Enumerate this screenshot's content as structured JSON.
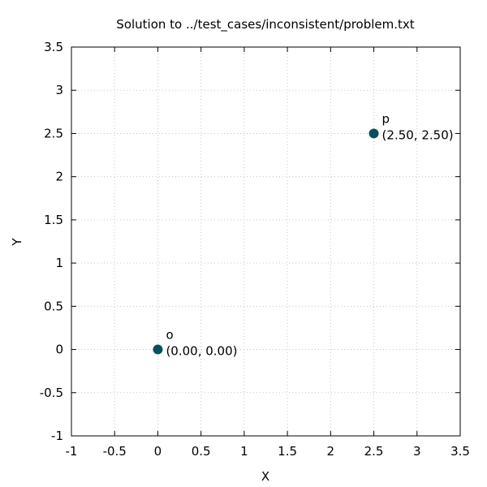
{
  "chart_data": {
    "type": "scatter",
    "title": "Solution to ../test_cases/inconsistent/problem.txt",
    "xlabel": "X",
    "ylabel": "Y",
    "xlim": [
      -1,
      3.5
    ],
    "ylim": [
      -1,
      3.5
    ],
    "xticks": [
      -1,
      -0.5,
      0,
      0.5,
      1,
      1.5,
      2,
      2.5,
      3,
      3.5
    ],
    "yticks": [
      -1,
      -0.5,
      0,
      0.5,
      1,
      1.5,
      2,
      2.5,
      3,
      3.5
    ],
    "xtick_labels": [
      "-1",
      "-0.5",
      "0",
      "0.5",
      "1",
      "1.5",
      "2",
      "2.5",
      "3",
      "3.5"
    ],
    "ytick_labels": [
      "-1",
      "-0.5",
      "0",
      "0.5",
      "1",
      "1.5",
      "2",
      "2.5",
      "3",
      "3.5"
    ],
    "grid": true,
    "point_color": "#0b4f5c",
    "points": [
      {
        "name": "o",
        "x": 0.0,
        "y": 0.0,
        "coord_label": "(0.00, 0.00)"
      },
      {
        "name": "p",
        "x": 2.5,
        "y": 2.5,
        "coord_label": "(2.50, 2.50)"
      }
    ]
  }
}
